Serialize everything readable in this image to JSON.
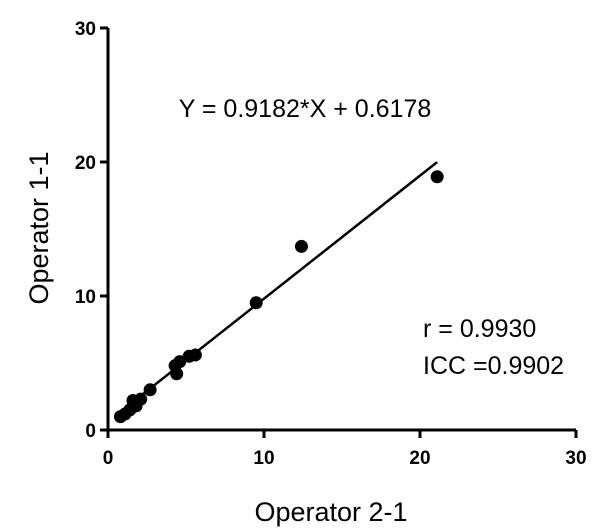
{
  "chart_data": {
    "type": "scatter",
    "xlabel": "Operator 2-1",
    "ylabel": "Operator 1-1",
    "xlim": [
      0,
      30
    ],
    "ylim": [
      0,
      30
    ],
    "xticks": [
      "0",
      "10",
      "20",
      "30"
    ],
    "yticks": [
      "0",
      "10",
      "20",
      "30"
    ],
    "grid": false,
    "series": [
      {
        "points": [
          {
            "x": 0.8,
            "y": 1.0
          },
          {
            "x": 1.1,
            "y": 1.2
          },
          {
            "x": 1.4,
            "y": 1.5
          },
          {
            "x": 1.6,
            "y": 2.2
          },
          {
            "x": 1.8,
            "y": 1.8
          },
          {
            "x": 2.1,
            "y": 2.3
          },
          {
            "x": 2.7,
            "y": 3.0
          },
          {
            "x": 4.3,
            "y": 4.8
          },
          {
            "x": 4.4,
            "y": 4.2
          },
          {
            "x": 4.6,
            "y": 5.1
          },
          {
            "x": 5.2,
            "y": 5.5
          },
          {
            "x": 5.6,
            "y": 5.6
          },
          {
            "x": 9.5,
            "y": 9.5
          },
          {
            "x": 12.4,
            "y": 13.7
          },
          {
            "x": 21.1,
            "y": 18.9
          }
        ]
      }
    ],
    "fit": {
      "slope": 0.9182,
      "intercept": 0.6178,
      "x_range": [
        0.8,
        21.1
      ]
    },
    "annotations": {
      "equation": "Y = 0.9182*X + 0.6178",
      "r": "r = 0.9930",
      "icc": "ICC =0.9902"
    }
  }
}
